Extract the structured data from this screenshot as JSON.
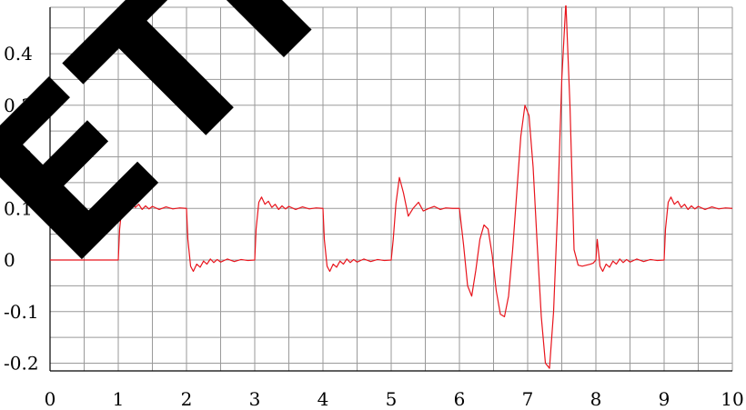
{
  "chart_data": {
    "type": "line",
    "title": "",
    "xlabel": "",
    "ylabel": "",
    "xlim": [
      0,
      10
    ],
    "ylim": [
      -0.215,
      0.49
    ],
    "grid": true,
    "legend": "none",
    "x_ticks": [
      0,
      1,
      2,
      3,
      4,
      5,
      6,
      7,
      8,
      9,
      10
    ],
    "x_tick_labels": [
      "0",
      "1",
      "2",
      "3",
      "4",
      "5",
      "6",
      "7",
      "8",
      "9",
      "10"
    ],
    "y_ticks": [
      -0.2,
      -0.1,
      0,
      0.1,
      0.2,
      0.3,
      0.4
    ],
    "y_tick_labels": [
      "-0.2",
      "-0.1",
      "0",
      "0.1",
      "0.2",
      "0.3",
      "0.4"
    ],
    "colors": {
      "series": "#e8141c",
      "grid": "#9a9a9a",
      "axis": "#000000",
      "watermark": "#000000"
    },
    "series": [
      {
        "x": [
          0,
          0.5,
          1.0,
          1.02,
          1.06,
          1.1,
          1.15,
          1.2,
          1.25,
          1.3,
          1.35,
          1.4,
          1.45,
          1.5,
          1.6,
          1.7,
          1.8,
          1.9,
          2.0,
          2.02,
          2.06,
          2.1,
          2.15,
          2.2,
          2.25,
          2.3,
          2.35,
          2.4,
          2.45,
          2.5,
          2.6,
          2.7,
          2.8,
          2.9,
          3.0,
          3.02,
          3.06,
          3.1,
          3.15,
          3.2,
          3.25,
          3.3,
          3.35,
          3.4,
          3.45,
          3.5,
          3.6,
          3.7,
          3.8,
          3.9,
          4.0,
          4.02,
          4.06,
          4.1,
          4.15,
          4.2,
          4.25,
          4.3,
          4.35,
          4.4,
          4.45,
          4.5,
          4.6,
          4.7,
          4.8,
          4.9,
          5.0,
          5.03,
          5.07,
          5.12,
          5.18,
          5.25,
          5.32,
          5.4,
          5.47,
          5.55,
          5.63,
          5.72,
          5.8,
          5.9,
          6.0,
          6.06,
          6.12,
          6.18,
          6.24,
          6.3,
          6.36,
          6.42,
          6.48,
          6.54,
          6.6,
          6.66,
          6.72,
          6.78,
          6.84,
          6.9,
          6.96,
          7.02,
          7.08,
          7.14,
          7.2,
          7.26,
          7.32,
          7.38,
          7.44,
          7.5,
          7.56,
          7.62,
          7.68,
          7.74,
          7.8,
          7.86,
          7.92,
          7.96,
          8.0,
          8.02,
          8.06,
          8.1,
          8.15,
          8.2,
          8.25,
          8.3,
          8.35,
          8.4,
          8.45,
          8.5,
          8.6,
          8.7,
          8.8,
          8.9,
          9.0,
          9.02,
          9.06,
          9.1,
          9.15,
          9.2,
          9.25,
          9.3,
          9.35,
          9.4,
          9.45,
          9.5,
          9.6,
          9.7,
          9.8,
          9.9,
          10.0
        ],
        "y": [
          0,
          0,
          0,
          0.06,
          0.112,
          0.122,
          0.108,
          0.114,
          0.102,
          0.108,
          0.098,
          0.105,
          0.099,
          0.104,
          0.098,
          0.103,
          0.099,
          0.101,
          0.1,
          0.04,
          -0.012,
          -0.022,
          -0.008,
          -0.014,
          -0.002,
          -0.008,
          0.002,
          -0.005,
          0.001,
          -0.004,
          0.002,
          -0.003,
          0.001,
          -0.001,
          0,
          0.06,
          0.112,
          0.122,
          0.108,
          0.114,
          0.102,
          0.108,
          0.098,
          0.105,
          0.099,
          0.104,
          0.098,
          0.103,
          0.099,
          0.101,
          0.1,
          0.04,
          -0.012,
          -0.022,
          -0.008,
          -0.014,
          -0.002,
          -0.008,
          0.002,
          -0.005,
          0.001,
          -0.004,
          0.002,
          -0.003,
          0.001,
          -0.001,
          0,
          0.04,
          0.11,
          0.16,
          0.13,
          0.085,
          0.1,
          0.112,
          0.095,
          0.1,
          0.104,
          0.098,
          0.101,
          0.1,
          0.1,
          0.03,
          -0.05,
          -0.07,
          -0.02,
          0.04,
          0.068,
          0.06,
          0.01,
          -0.06,
          -0.105,
          -0.11,
          -0.07,
          0.02,
          0.13,
          0.24,
          0.3,
          0.28,
          0.18,
          0.03,
          -0.11,
          -0.2,
          -0.21,
          -0.1,
          0.1,
          0.35,
          0.5,
          0.3,
          0.02,
          -0.01,
          -0.012,
          -0.01,
          -0.008,
          -0.006,
          0,
          0.04,
          -0.012,
          -0.022,
          -0.008,
          -0.014,
          -0.002,
          -0.008,
          0.002,
          -0.005,
          0.001,
          -0.004,
          0.002,
          -0.003,
          0.001,
          -0.001,
          0,
          0.06,
          0.112,
          0.122,
          0.108,
          0.114,
          0.102,
          0.108,
          0.098,
          0.105,
          0.099,
          0.104,
          0.098,
          0.103,
          0.099,
          0.101,
          0.1
        ]
      }
    ]
  },
  "watermark": {
    "text": "ETRA",
    "color": "#000000"
  }
}
